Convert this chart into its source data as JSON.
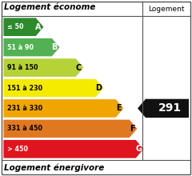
{
  "title_top": "Logement économe",
  "title_bottom": "Logement énergivore",
  "col_header": "Logement",
  "value": "291",
  "bands": [
    {
      "label": "≤ 50",
      "letter": "A",
      "color": "#2d8a2d",
      "text_color": "white"
    },
    {
      "label": "51 à 90",
      "letter": "B",
      "color": "#52b153",
      "text_color": "white"
    },
    {
      "label": "91 à 150",
      "letter": "C",
      "color": "#b5d236",
      "text_color": "black"
    },
    {
      "label": "151 à 230",
      "letter": "D",
      "color": "#f5eb00",
      "text_color": "black"
    },
    {
      "label": "231 à 330",
      "letter": "E",
      "color": "#f0a500",
      "text_color": "black"
    },
    {
      "label": "331 à 450",
      "letter": "F",
      "color": "#e07820",
      "text_color": "black"
    },
    {
      "label": "> 450",
      "letter": "G",
      "color": "#e0141e",
      "text_color": "white"
    }
  ],
  "value_band_index": 4,
  "bg_color": "#ffffff",
  "border_color": "#555555",
  "value_bg": "#111111",
  "value_text_color": "#ffffff",
  "figsize": [
    2.4,
    2.2
  ],
  "dpi": 100
}
